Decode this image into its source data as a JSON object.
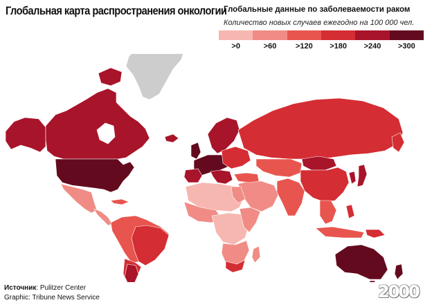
{
  "title": "Глобальная карта распространения онкологии",
  "legend": {
    "title": "Глобальные данные по заболеваемости раком",
    "subtitle": "Количество новых случаев ежегодно на 100 000 чел.",
    "bins": [
      {
        "label": ">0",
        "color": "#f7b7b1"
      },
      {
        "label": ">60",
        "color": "#f08c85"
      },
      {
        "label": ">120",
        "color": "#e8554f"
      },
      {
        "label": ">180",
        "color": "#d42d33"
      },
      {
        "label": ">240",
        "color": "#a8142a"
      },
      {
        "label": ">300",
        "color": "#640a1e"
      }
    ]
  },
  "no_data_color": "#cdcdcd",
  "ocean_color": "#ffffff",
  "source": {
    "label": "Источник",
    "value": ": Pulitzer Center"
  },
  "graphic": "Graphic: Tribune News Service",
  "logo": "2000"
}
